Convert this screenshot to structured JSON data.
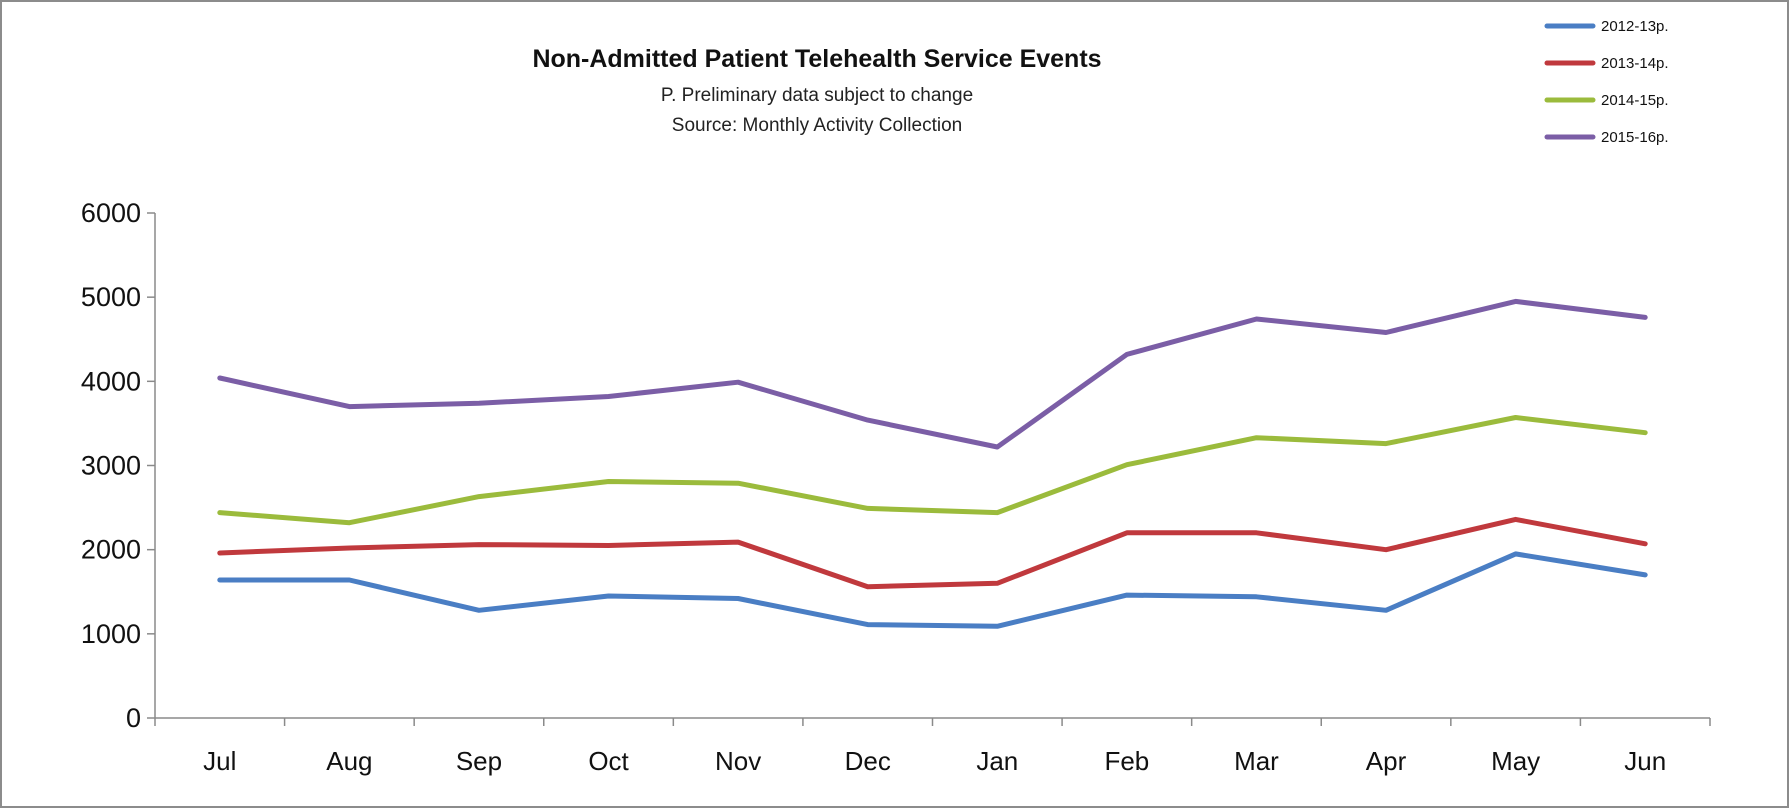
{
  "chart_data": {
    "type": "line",
    "title": "Non-Admitted Patient Telehealth Service Events",
    "subtitles": [
      "P. Preliminary data subject to change",
      "Source: Monthly Activity Collection"
    ],
    "categories": [
      "Jul",
      "Aug",
      "Sep",
      "Oct",
      "Nov",
      "Dec",
      "Jan",
      "Feb",
      "Mar",
      "Apr",
      "May",
      "Jun"
    ],
    "ylim": [
      0,
      6000
    ],
    "yticks": [
      0,
      1000,
      2000,
      3000,
      4000,
      5000,
      6000
    ],
    "grid": false,
    "legend_position": "top-right",
    "series": [
      {
        "name": "2012-13p.",
        "color": "#4a7ec4",
        "values": [
          1640,
          1640,
          1280,
          1450,
          1420,
          1110,
          1090,
          1460,
          1440,
          1280,
          1950,
          1700
        ]
      },
      {
        "name": "2013-14p.",
        "color": "#c0393d",
        "values": [
          1960,
          2020,
          2060,
          2050,
          2090,
          1560,
          1600,
          2200,
          2200,
          2000,
          2360,
          2070
        ]
      },
      {
        "name": "2014-15p.",
        "color": "#9bbb3c",
        "values": [
          2440,
          2320,
          2630,
          2810,
          2790,
          2490,
          2440,
          3010,
          3330,
          3260,
          3570,
          3390
        ]
      },
      {
        "name": "2015-16p.",
        "color": "#7b5ea6",
        "values": [
          4040,
          3700,
          3740,
          3820,
          3990,
          3540,
          3220,
          4320,
          4740,
          4580,
          4950,
          4760
        ]
      }
    ]
  }
}
